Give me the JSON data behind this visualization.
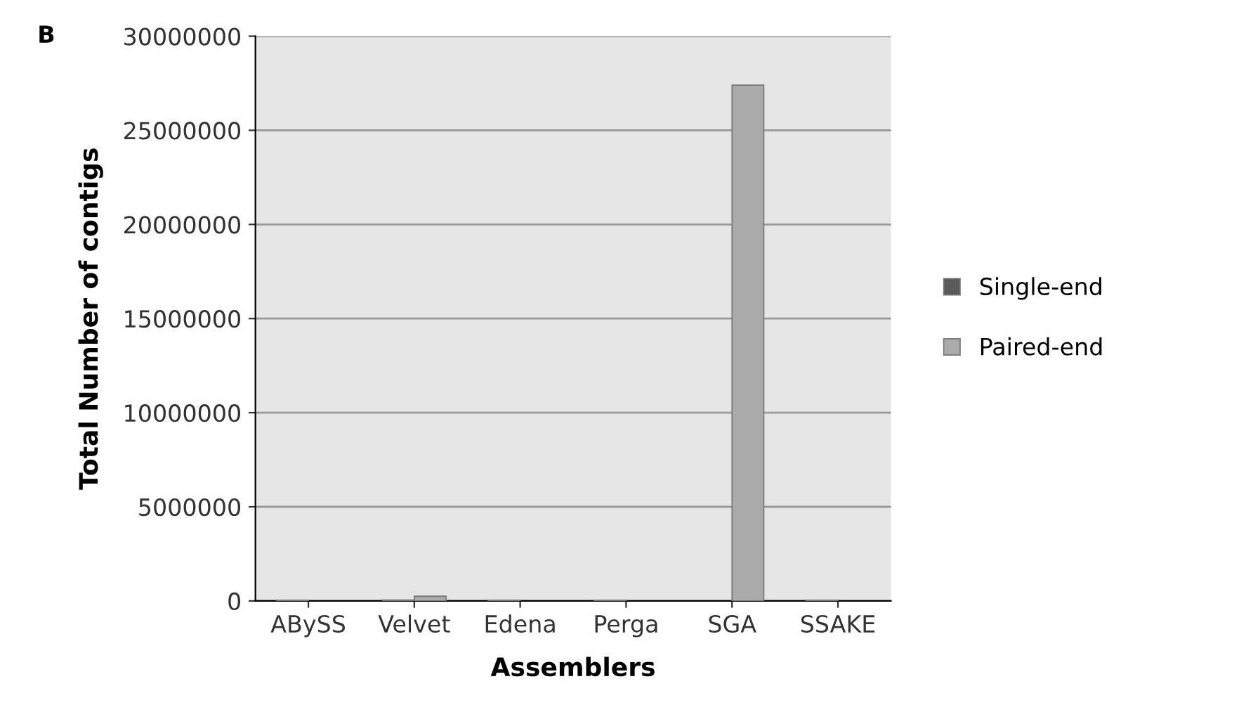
{
  "chart_data": {
    "type": "bar",
    "title": "B",
    "xlabel": "Assemblers",
    "ylabel": "Total Number of contigs",
    "categories": [
      "ABySS",
      "Velvet",
      "Edena",
      "Perga",
      "SGA",
      "SSAKE"
    ],
    "series": [
      {
        "name": "Single-end",
        "color": "#5a5a5a",
        "values": [
          40000,
          50000,
          40000,
          30000,
          null,
          40000
        ]
      },
      {
        "name": "Paired-end",
        "color": "#aaaaaa",
        "values": [
          null,
          250000,
          null,
          null,
          27400000,
          null
        ]
      }
    ],
    "ylim": [
      0,
      30000000
    ],
    "yticks": [
      0,
      5000000,
      10000000,
      15000000,
      20000000,
      25000000,
      30000000
    ],
    "grid": "y",
    "legend": "right"
  }
}
